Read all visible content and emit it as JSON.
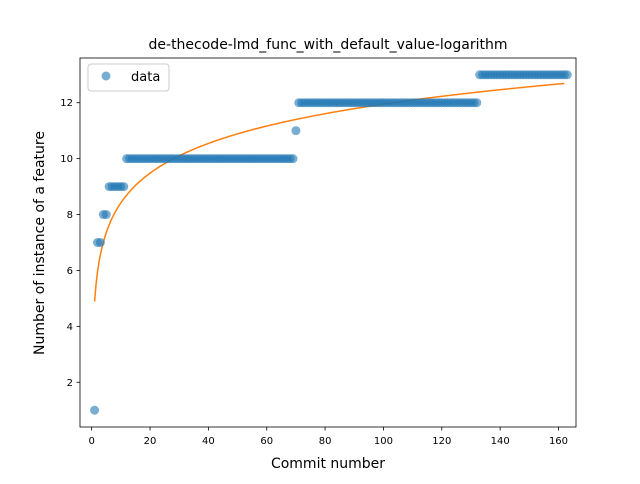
{
  "chart_data": {
    "type": "scatter",
    "title": "de-thecode-lmd_func_with_default_value-logarithm",
    "xlabel": "Commit number",
    "ylabel": "Number of instance of a feature",
    "xlim": [
      -4,
      166
    ],
    "ylim": [
      0.4,
      13.6
    ],
    "xticks": [
      0,
      20,
      40,
      60,
      80,
      100,
      120,
      140,
      160
    ],
    "yticks": [
      2,
      4,
      6,
      8,
      10,
      12
    ],
    "grid": false,
    "legend": {
      "position": "top-left",
      "entries": [
        "data"
      ]
    },
    "series": [
      {
        "name": "data",
        "kind": "points",
        "color": "#1f77b4",
        "segments": [
          {
            "x_from": 1,
            "x_to": 1,
            "y": 1
          },
          {
            "x_from": 2,
            "x_to": 3,
            "y": 7
          },
          {
            "x_from": 4,
            "x_to": 5,
            "y": 8
          },
          {
            "x_from": 6,
            "x_to": 11,
            "y": 9
          },
          {
            "x_from": 12,
            "x_to": 69,
            "y": 10
          },
          {
            "x_from": 70,
            "x_to": 70,
            "y": 11
          },
          {
            "x_from": 71,
            "x_to": 132,
            "y": 12
          },
          {
            "x_from": 133,
            "x_to": 163,
            "y": 13
          }
        ]
      },
      {
        "name": "",
        "kind": "line",
        "color": "#ff7f0e",
        "model": "logarithmic",
        "coefficients": {
          "a": 1.534,
          "b": 4.885
        },
        "x_range": [
          1,
          162
        ]
      }
    ]
  }
}
